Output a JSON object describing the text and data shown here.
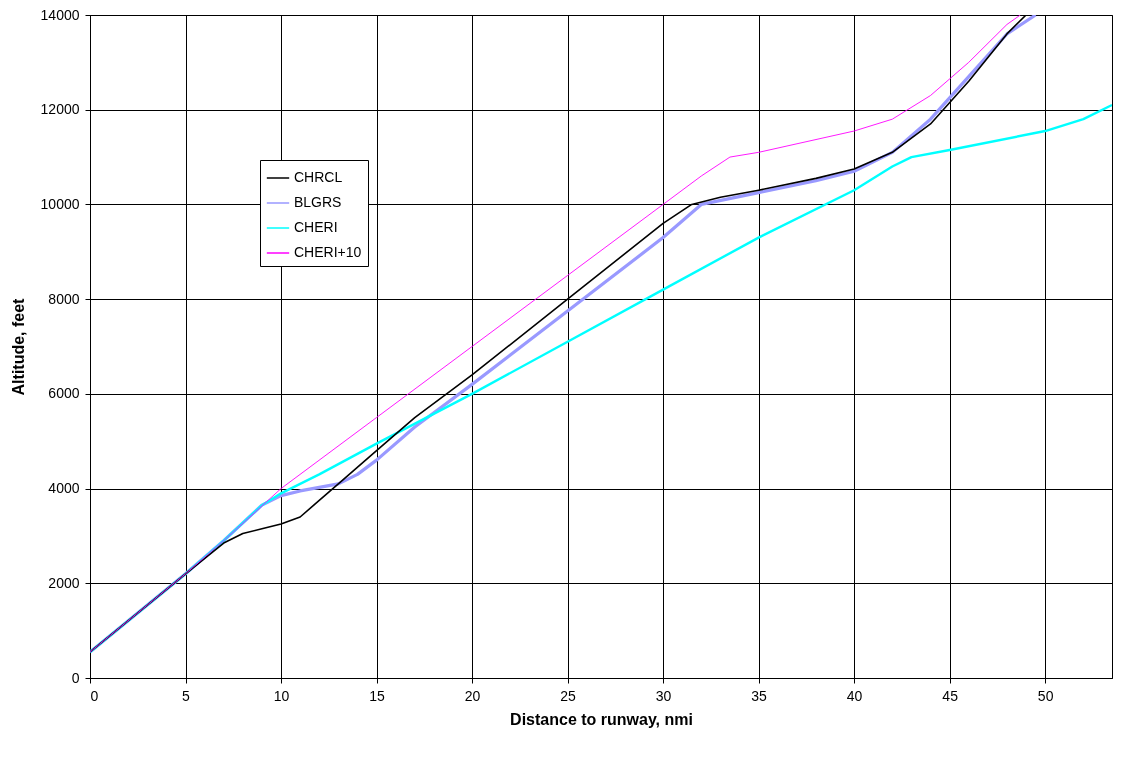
{
  "chart_data": {
    "type": "line",
    "xlabel": "Distance to runway, nmi",
    "ylabel": "Altitude, feet",
    "xlim": [
      0,
      53.5
    ],
    "ylim": [
      0,
      14000
    ],
    "xticks": [
      0,
      5,
      10,
      15,
      20,
      25,
      30,
      35,
      40,
      45,
      50
    ],
    "yticks": [
      0,
      2000,
      4000,
      6000,
      8000,
      10000,
      12000,
      14000
    ],
    "grid": true,
    "legend": "top left",
    "line_style": "solid",
    "marker": "none",
    "series": [
      {
        "name": "CHRCL",
        "color": "#000000",
        "x": [
          0,
          5,
          7,
          8,
          9,
          10,
          11,
          12,
          13,
          15,
          17,
          20,
          25,
          30,
          31.5,
          33,
          35,
          38,
          40,
          42,
          44,
          46,
          48,
          49
        ],
        "values": [
          550,
          2200,
          2850,
          3050,
          3150,
          3250,
          3400,
          3750,
          4100,
          4800,
          5500,
          6400,
          8000,
          9600,
          10000,
          10150,
          10300,
          10550,
          10750,
          11100,
          11700,
          12600,
          13600,
          14000
        ]
      },
      {
        "name": "BLGRS",
        "color": "#9999ff",
        "x": [
          0,
          5,
          7,
          9,
          10,
          11,
          13,
          14,
          15,
          17,
          20,
          25,
          30,
          32,
          35,
          38,
          40,
          42,
          44,
          46,
          48,
          49.5
        ],
        "values": [
          550,
          2200,
          2900,
          3650,
          3850,
          3950,
          4100,
          4300,
          4600,
          5300,
          6200,
          7750,
          9300,
          10000,
          10250,
          10500,
          10700,
          11100,
          11800,
          12700,
          13600,
          14000
        ]
      },
      {
        "name": "CHERI",
        "color": "#00ffff",
        "x": [
          0,
          5,
          7,
          9,
          10,
          12,
          15,
          20,
          25,
          30,
          35,
          40,
          42,
          43,
          45,
          50,
          52,
          53.5
        ],
        "values": [
          550,
          2200,
          2900,
          3650,
          3900,
          4300,
          4950,
          6000,
          7100,
          8200,
          9300,
          10300,
          10800,
          11000,
          11150,
          11550,
          11800,
          12100
        ]
      },
      {
        "name": "CHERI+10",
        "color": "#ff00ff",
        "x": [
          0,
          5,
          7,
          10,
          15,
          20,
          25,
          30,
          32,
          33.5,
          35,
          40,
          42,
          44,
          46,
          48,
          48.7
        ],
        "values": [
          550,
          2200,
          2900,
          4000,
          5500,
          7000,
          8500,
          10000,
          10600,
          11000,
          11100,
          11550,
          11800,
          12300,
          13000,
          13800,
          14000
        ]
      }
    ]
  }
}
